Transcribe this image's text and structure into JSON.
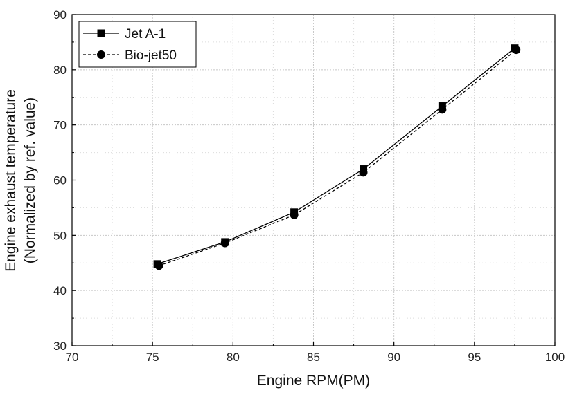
{
  "chart_data": {
    "type": "line",
    "title": "",
    "xlabel": "Engine RPM(PM)",
    "ylabel_line1": "Engine exhaust temperature",
    "ylabel_line2": "(Normalized by ref. value)",
    "xlim": [
      70,
      100
    ],
    "ylim": [
      30,
      90
    ],
    "xticks": [
      70,
      75,
      80,
      85,
      90,
      95,
      100
    ],
    "yticks": [
      30,
      40,
      50,
      60,
      70,
      80,
      90
    ],
    "x_minor_step": 2.5,
    "y_minor_step": 5,
    "grid": true,
    "legend_position": "top-left",
    "series": [
      {
        "name": "Jet A-1",
        "marker": "square",
        "line_style": "solid",
        "color": "#000000",
        "points": [
          {
            "x": 75.3,
            "y": 44.8
          },
          {
            "x": 79.5,
            "y": 48.8
          },
          {
            "x": 83.8,
            "y": 54.2
          },
          {
            "x": 88.1,
            "y": 62.0
          },
          {
            "x": 93.0,
            "y": 73.4
          },
          {
            "x": 97.5,
            "y": 83.9
          }
        ]
      },
      {
        "name": "Bio-jet50",
        "marker": "circle",
        "line_style": "dashed",
        "color": "#000000",
        "points": [
          {
            "x": 75.4,
            "y": 44.5
          },
          {
            "x": 79.5,
            "y": 48.6
          },
          {
            "x": 83.8,
            "y": 53.7
          },
          {
            "x": 88.1,
            "y": 61.4
          },
          {
            "x": 93.0,
            "y": 72.8
          },
          {
            "x": 97.6,
            "y": 83.6
          }
        ]
      }
    ]
  }
}
